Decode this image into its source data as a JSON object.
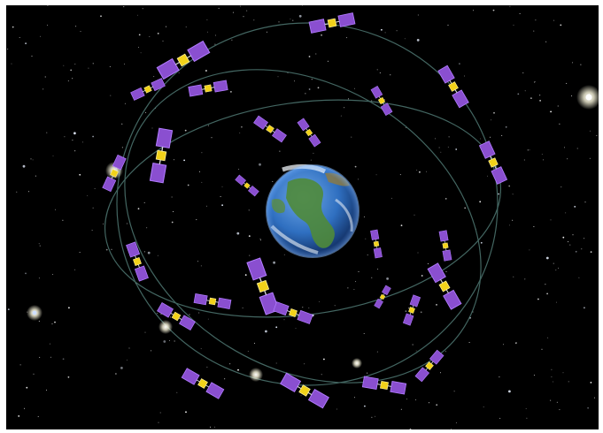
{
  "image": {
    "subject": "satellite-constellation",
    "background_color": "#000000",
    "frame_color": "#ffffff"
  },
  "colors": {
    "solar_panel": "#8a4fd0",
    "solar_panel_edge": "#b27cff",
    "satellite_body": "#f2d21a",
    "orbit": "#5a7f7a",
    "ocean": "#2f6fc0",
    "land": "#4f8a3a",
    "cloud": "#e8eef5"
  }
}
